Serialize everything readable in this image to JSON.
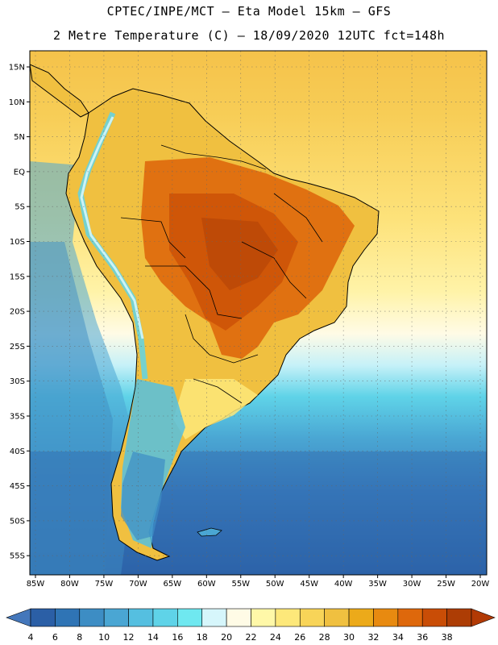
{
  "header": {
    "line1": "CPTEC/INPE/MCT –  Eta Model 15km – GFS",
    "line2": "2 Metre Temperature (C) – 18/09/2020 12UTC fct=148h"
  },
  "lat_labels": [
    "15N",
    "10N",
    "5N",
    "EQ",
    "5S",
    "10S",
    "15S",
    "20S",
    "25S",
    "30S",
    "35S",
    "40S",
    "45S",
    "50S",
    "55S"
  ],
  "lon_labels": [
    "85W",
    "80W",
    "75W",
    "70W",
    "65W",
    "60W",
    "55W",
    "50W",
    "45W",
    "40W",
    "35W",
    "30W",
    "25W",
    "20W"
  ],
  "colorbar": {
    "labels": [
      "4",
      "6",
      "8",
      "10",
      "12",
      "14",
      "16",
      "18",
      "20",
      "22",
      "24",
      "26",
      "28",
      "30",
      "32",
      "34",
      "36",
      "38"
    ],
    "colors": [
      "#2b5fa6",
      "#2f74b5",
      "#3d8dc4",
      "#4aa6d3",
      "#55bfe0",
      "#5fd3e8",
      "#6fe8f0",
      "#d6f6fb",
      "#fffbe6",
      "#fff8a8",
      "#fde87a",
      "#f8d458",
      "#f0c040",
      "#ecaa1a",
      "#e88a10",
      "#de680c",
      "#c94d06",
      "#ad3d05"
    ],
    "low_color": "#4477bb",
    "high_color": "#b23a05"
  }
}
